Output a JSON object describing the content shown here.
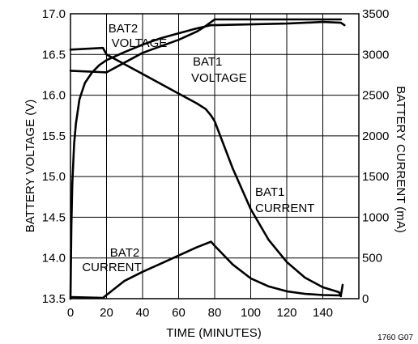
{
  "chart_data": {
    "type": "line",
    "xlabel": "TIME (MINUTES)",
    "ylabel": "BATTERY VOLTAGE (V)",
    "y2label": "BATTERY CURRENT (mA)",
    "xlim": [
      0,
      160
    ],
    "ylim": [
      13.5,
      17.0
    ],
    "y2lim": [
      0,
      3500
    ],
    "grid": true,
    "x_ticks": [
      0,
      20,
      40,
      60,
      80,
      100,
      120,
      140
    ],
    "x_tick_labels": [
      "0",
      "20",
      "40",
      "60",
      "80",
      "100",
      "120",
      "140"
    ],
    "y_ticks": [
      13.5,
      14.0,
      14.5,
      15.0,
      15.5,
      16.0,
      16.5,
      17.0
    ],
    "y_tick_labels": [
      "13.5",
      "14.0",
      "14.5",
      "15.0",
      "15.5",
      "16.0",
      "16.5",
      "17.0"
    ],
    "y2_ticks": [
      0,
      500,
      1000,
      1500,
      2000,
      2500,
      3000,
      3500
    ],
    "y2_tick_labels": [
      "0",
      "500",
      "1000",
      "1500",
      "2000",
      "2500",
      "3000",
      "3500"
    ],
    "series": [
      {
        "name": "BAT2 VOLTAGE",
        "axis": "left",
        "label_lines": [
          "BAT2",
          "VOLTAGE"
        ],
        "x": [
          0,
          20,
          30,
          40,
          50,
          60,
          70,
          75,
          80,
          100,
          120,
          140,
          150
        ],
        "y": [
          16.3,
          16.28,
          16.4,
          16.52,
          16.6,
          16.68,
          16.78,
          16.85,
          16.93,
          16.93,
          16.93,
          16.93,
          16.93
        ]
      },
      {
        "name": "BAT1 VOLTAGE",
        "axis": "left",
        "label_lines": [
          "BAT1",
          "VOLTAGE"
        ],
        "x": [
          0,
          0.5,
          1,
          2,
          3,
          5,
          8,
          12,
          16,
          20,
          30,
          40,
          50,
          60,
          70,
          78,
          80,
          100,
          120,
          140,
          150,
          152
        ],
        "y": [
          13.5,
          14.4,
          14.9,
          15.4,
          15.65,
          15.95,
          16.15,
          16.28,
          16.37,
          16.43,
          16.53,
          16.62,
          16.7,
          16.76,
          16.82,
          16.86,
          16.86,
          16.87,
          16.88,
          16.9,
          16.89,
          16.86
        ]
      },
      {
        "name": "BAT1 CURRENT",
        "axis": "right",
        "label_lines": [
          "BAT1",
          "CURRENT"
        ],
        "x": [
          0,
          18,
          20,
          30,
          40,
          50,
          60,
          70,
          75,
          78,
          80,
          90,
          100,
          110,
          120,
          130,
          140,
          149,
          150
        ],
        "y": [
          3060,
          3080,
          3000,
          2880,
          2760,
          2640,
          2520,
          2400,
          2330,
          2250,
          2180,
          1600,
          1100,
          720,
          450,
          260,
          140,
          80,
          30
        ]
      },
      {
        "name": "BAT2 CURRENT",
        "axis": "right",
        "label_lines": [
          "BAT2",
          "CURRENT"
        ],
        "x": [
          0,
          0.5,
          18,
          22,
          30,
          40,
          50,
          60,
          70,
          78,
          80,
          90,
          100,
          110,
          120,
          130,
          140,
          150,
          151
        ],
        "y": [
          0,
          20,
          10,
          80,
          220,
          330,
          430,
          530,
          630,
          700,
          650,
          420,
          250,
          150,
          90,
          60,
          45,
          40,
          170
        ]
      }
    ],
    "code_label": "1760 G07"
  }
}
